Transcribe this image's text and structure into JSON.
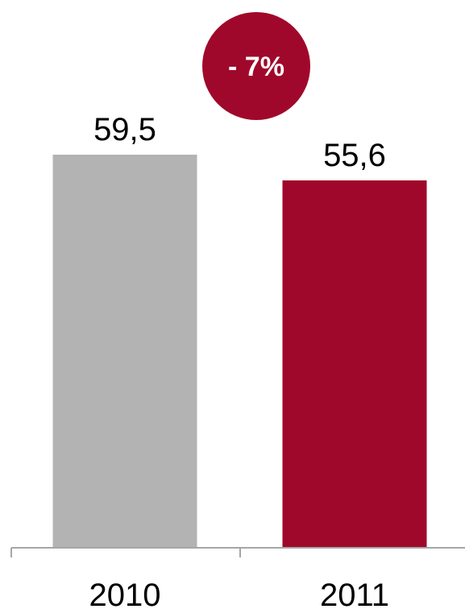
{
  "chart_data": {
    "type": "bar",
    "categories": [
      "2010",
      "2011"
    ],
    "values": [
      59.5,
      55.6
    ],
    "data_labels": [
      "59,5",
      "55,6"
    ],
    "bar_colors": [
      "#b3b3b3",
      "#a0082b"
    ],
    "annotation": {
      "text": "- 7%",
      "color": "#a0082b",
      "text_color": "#ffffff"
    },
    "title": "",
    "xlabel": "",
    "ylabel": "",
    "ylim": [
      0,
      59.5
    ],
    "grid": false,
    "legend": "none"
  }
}
